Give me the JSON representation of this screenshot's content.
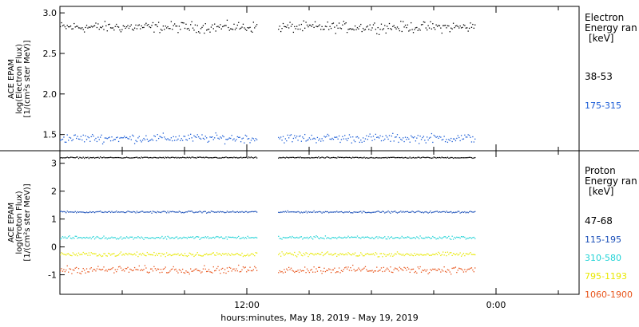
{
  "page": {
    "xlabel": "hours:minutes, May 18, 2019 - May 19, 2019"
  },
  "chart_data": [
    {
      "type": "scatter",
      "panel": "electron",
      "ylabel_lines": [
        "ACE EPAM",
        "log(Electron Flux)",
        "[1/(cm²s ster MeV)]"
      ],
      "ylim": [
        1.3,
        3.08
      ],
      "yticks": [
        "3.0",
        "2.5",
        "2.0",
        "1.5"
      ],
      "ytick_values": [
        3.0,
        2.5,
        2.0,
        1.5
      ],
      "legend_title": [
        "Electron",
        "Energy ran",
        "[keV]"
      ],
      "legend_placement": "right",
      "data_gap": [
        9.5,
        10.5
      ],
      "series": [
        {
          "name": "38-53",
          "color": "#000000",
          "mean": 2.83,
          "spread": 0.06
        },
        {
          "name": "175-315",
          "color": "#1a5cd6",
          "mean": 1.46,
          "spread": 0.05
        }
      ]
    },
    {
      "type": "scatter",
      "panel": "proton",
      "ylabel_lines": [
        "ACE EPAM",
        "log(Proton Flux)",
        "[1/(cm²s ster MeV)]"
      ],
      "ylim": [
        -1.7,
        3.45
      ],
      "yticks": [
        "3",
        "2",
        "1",
        "0",
        "-1"
      ],
      "ytick_values": [
        3,
        2,
        1,
        0,
        -1
      ],
      "legend_title": [
        "Proton",
        "Energy ran",
        "[keV]"
      ],
      "legend_placement": "right",
      "data_gap": [
        9.5,
        10.5
      ],
      "series": [
        {
          "name": "47-68",
          "color": "#000000",
          "mean": 3.22,
          "spread": 0.02
        },
        {
          "name": "115-195",
          "color": "#1a4fb8",
          "mean": 1.27,
          "spread": 0.03
        },
        {
          "name": "310-580",
          "color": "#22d3d6",
          "mean": 0.35,
          "spread": 0.05
        },
        {
          "name": "795-1193",
          "color": "#e8e800",
          "mean": -0.25,
          "spread": 0.07
        },
        {
          "name": "1060-1900",
          "color": "#e8541a",
          "mean": -0.8,
          "spread": 0.12
        }
      ]
    }
  ],
  "x_axis": {
    "range_hours": [
      0,
      25
    ],
    "start_hour": 3,
    "data_range": [
      0,
      20
    ],
    "major_ticks": [
      {
        "hours": 9,
        "label": "12:00"
      },
      {
        "hours": 21,
        "label": "0:00"
      }
    ]
  }
}
